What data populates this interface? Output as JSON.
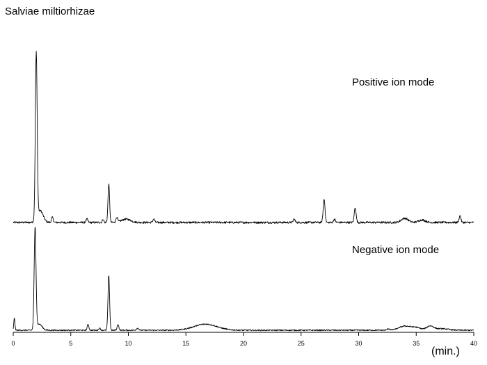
{
  "figure": {
    "title": "Salviae miltiorhizae"
  },
  "chart_data": {
    "type": "line",
    "title": "Salviae miltiorhizae",
    "xlabel": "(min.)",
    "ylabel": "",
    "xlim": [
      0,
      40
    ],
    "xticks": [
      0,
      5,
      10,
      15,
      20,
      25,
      30,
      35,
      40
    ],
    "yaxis_shown": false,
    "grid": false,
    "series": [
      {
        "name": "Positive ion mode",
        "baseline": 0.02,
        "peaks": [
          {
            "x": 2.0,
            "y": 1.0,
            "w": 0.08
          },
          {
            "x": 2.35,
            "y": 0.07,
            "w": 0.25
          },
          {
            "x": 3.4,
            "y": 0.03,
            "w": 0.08
          },
          {
            "x": 6.4,
            "y": 0.02,
            "w": 0.08
          },
          {
            "x": 7.8,
            "y": 0.02,
            "w": 0.06
          },
          {
            "x": 8.3,
            "y": 0.23,
            "w": 0.07
          },
          {
            "x": 9.0,
            "y": 0.03,
            "w": 0.07
          },
          {
            "x": 9.8,
            "y": 0.02,
            "w": 0.4
          },
          {
            "x": 12.2,
            "y": 0.02,
            "w": 0.08
          },
          {
            "x": 24.4,
            "y": 0.02,
            "w": 0.08
          },
          {
            "x": 27.0,
            "y": 0.14,
            "w": 0.08
          },
          {
            "x": 27.9,
            "y": 0.02,
            "w": 0.08
          },
          {
            "x": 29.7,
            "y": 0.09,
            "w": 0.08
          },
          {
            "x": 34.0,
            "y": 0.025,
            "w": 0.3
          },
          {
            "x": 35.5,
            "y": 0.015,
            "w": 0.3
          },
          {
            "x": 38.8,
            "y": 0.04,
            "w": 0.08
          }
        ]
      },
      {
        "name": "Negative ion mode",
        "baseline": 0.02,
        "peaks": [
          {
            "x": 0.1,
            "y": 0.12,
            "w": 0.05
          },
          {
            "x": 1.9,
            "y": 1.0,
            "w": 0.08
          },
          {
            "x": 2.25,
            "y": 0.06,
            "w": 0.25
          },
          {
            "x": 6.5,
            "y": 0.06,
            "w": 0.07
          },
          {
            "x": 7.5,
            "y": 0.02,
            "w": 0.08
          },
          {
            "x": 8.3,
            "y": 0.54,
            "w": 0.07
          },
          {
            "x": 9.1,
            "y": 0.06,
            "w": 0.07
          },
          {
            "x": 10.8,
            "y": 0.02,
            "w": 0.1
          },
          {
            "x": 16.7,
            "y": 0.06,
            "w": 1.0
          },
          {
            "x": 32.6,
            "y": 0.015,
            "w": 0.1
          },
          {
            "x": 34.0,
            "y": 0.04,
            "w": 0.5
          },
          {
            "x": 35.0,
            "y": 0.025,
            "w": 0.4
          },
          {
            "x": 36.2,
            "y": 0.04,
            "w": 0.3
          },
          {
            "x": 37.2,
            "y": 0.015,
            "w": 0.6
          }
        ]
      }
    ]
  }
}
